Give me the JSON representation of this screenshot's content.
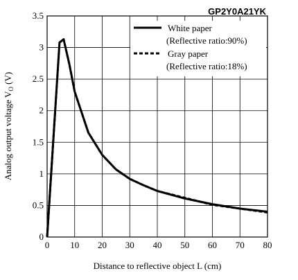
{
  "chart_data": {
    "type": "line",
    "title": "GP2Y0A21YK",
    "xlabel": "Distance to reflective object L (cm)",
    "ylabel_main": "Analog output voltage V",
    "ylabel_sub": "O",
    "ylabel_unit": " (V)",
    "xlim": [
      0,
      80
    ],
    "ylim": [
      0,
      3.5
    ],
    "x_ticks": [
      "0",
      "10",
      "20",
      "30",
      "40",
      "50",
      "60",
      "70",
      "80"
    ],
    "y_ticks": [
      "0",
      "0.5",
      "1",
      "1.5",
      "2",
      "2.5",
      "3",
      "3.5"
    ],
    "grid": true,
    "legend_position": "top-right",
    "series": [
      {
        "name": "White paper",
        "name_detail": "(Reflective ratio:90%)",
        "line_style": "solid",
        "color": "#000000",
        "points": [
          [
            0,
            0
          ],
          [
            4.5,
            3.08
          ],
          [
            6,
            3.13
          ],
          [
            8,
            2.75
          ],
          [
            10,
            2.3
          ],
          [
            15,
            1.65
          ],
          [
            20,
            1.3
          ],
          [
            25,
            1.07
          ],
          [
            30,
            0.92
          ],
          [
            35,
            0.82
          ],
          [
            40,
            0.73
          ],
          [
            50,
            0.61
          ],
          [
            60,
            0.52
          ],
          [
            70,
            0.45
          ],
          [
            80,
            0.4
          ]
        ]
      },
      {
        "name": "Gray paper",
        "name_detail": "(Reflective ratio:18%)",
        "line_style": "dashed",
        "color": "#000000",
        "points": [
          [
            0,
            0
          ],
          [
            4.5,
            3.08
          ],
          [
            6,
            3.13
          ],
          [
            8,
            2.75
          ],
          [
            10,
            2.3
          ],
          [
            15,
            1.65
          ],
          [
            20,
            1.3
          ],
          [
            25,
            1.07
          ],
          [
            30,
            0.92
          ],
          [
            35,
            0.82
          ],
          [
            40,
            0.73
          ],
          [
            50,
            0.62
          ],
          [
            60,
            0.51
          ],
          [
            70,
            0.45
          ],
          [
            80,
            0.39
          ]
        ]
      }
    ]
  }
}
